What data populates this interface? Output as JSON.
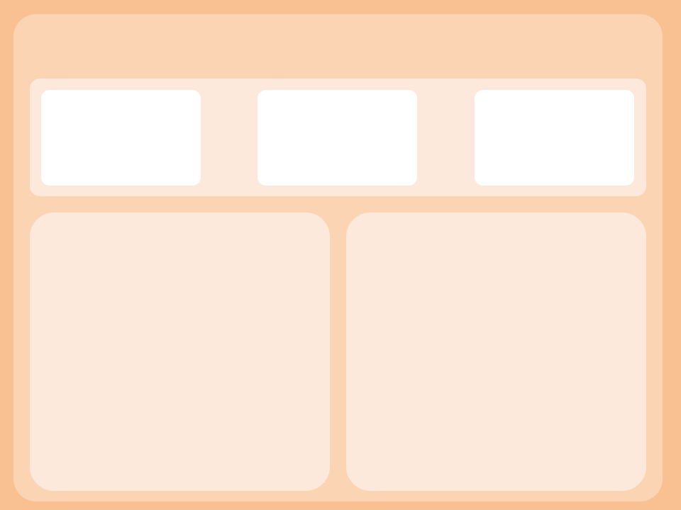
{
  "theme": {
    "page_background": "#F9C192",
    "window_background": "#FBD4B4",
    "panel_background": "#FDE9DB",
    "tile_background": "#FFFFFF"
  },
  "header": {
    "title": ""
  },
  "tiles": [
    {
      "label": ""
    },
    {
      "label": ""
    },
    {
      "label": ""
    }
  ],
  "panels": {
    "left": {
      "title": ""
    },
    "right": {
      "title": ""
    }
  }
}
